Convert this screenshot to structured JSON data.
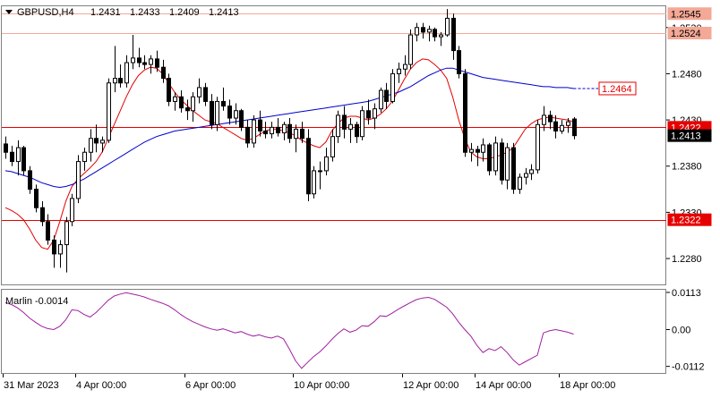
{
  "chart_data": [
    {
      "type": "candlestick",
      "title": "GBPUSD,H4",
      "header_ohlc": [
        "1.2431",
        "1.2433",
        "1.2409",
        "1.2413"
      ],
      "ylim": [
        1.2252,
        1.2553
      ],
      "yticks": [
        "1.2280",
        "1.2330",
        "1.2380",
        "1.2430",
        "1.2480",
        "1.2530"
      ],
      "xticks": [
        "31 Mar 2023",
        "4 Apr 00:00",
        "6 Apr 00:00",
        "10 Apr 00:00",
        "12 Apr 00:00",
        "14 Apr 00:00",
        "18 Apr 00:00"
      ],
      "hlines": [
        {
          "label": "1.2545",
          "value": 1.2545,
          "color": "#f4a896",
          "style": "solid"
        },
        {
          "label": "1.2524",
          "value": 1.2524,
          "color": "#f4a896",
          "style": "solid"
        },
        {
          "label": "1.2422",
          "value": 1.2422,
          "color": "#e60000",
          "style": "solid"
        },
        {
          "label": "1.2322",
          "value": 1.2322,
          "color": "#e60000",
          "style": "solid"
        }
      ],
      "target_label": {
        "label": "1.2464",
        "value": 1.2464,
        "color": "#e60000"
      },
      "current_price": {
        "label": "1.2413",
        "value": 1.2413
      },
      "candles": [
        [
          1.2404,
          1.2412,
          1.2388,
          1.2395
        ],
        [
          1.2395,
          1.2402,
          1.238,
          1.2385
        ],
        [
          1.2385,
          1.2408,
          1.237,
          1.24
        ],
        [
          1.24,
          1.2402,
          1.237,
          1.2375
        ],
        [
          1.2375,
          1.238,
          1.235,
          1.2355
        ],
        [
          1.2355,
          1.236,
          1.233,
          1.2335
        ],
        [
          1.2335,
          1.2342,
          1.2315,
          1.232
        ],
        [
          1.232,
          1.2328,
          1.2295,
          1.23
        ],
        [
          1.23,
          1.2305,
          1.227,
          1.2285
        ],
        [
          1.2285,
          1.23,
          1.227,
          1.2295
        ],
        [
          1.2295,
          1.2325,
          1.2265,
          1.232
        ],
        [
          1.232,
          1.235,
          1.2315,
          1.2345
        ],
        [
          1.2345,
          1.2392,
          1.234,
          1.2385
        ],
        [
          1.2385,
          1.24,
          1.2375,
          1.2395
        ],
        [
          1.2395,
          1.242,
          1.2385,
          1.241
        ],
        [
          1.241,
          1.2425,
          1.2395,
          1.2405
        ],
        [
          1.2405,
          1.2412,
          1.2395,
          1.2408
        ],
        [
          1.2408,
          1.2475,
          1.2405,
          1.247
        ],
        [
          1.247,
          1.251,
          1.246,
          1.2475
        ],
        [
          1.2475,
          1.249,
          1.2465,
          1.247
        ],
        [
          1.247,
          1.25,
          1.2465,
          1.2492
        ],
        [
          1.2492,
          1.2522,
          1.2485,
          1.2497
        ],
        [
          1.2497,
          1.2508,
          1.2487,
          1.2492
        ],
        [
          1.2492,
          1.25,
          1.2485,
          1.249
        ],
        [
          1.249,
          1.25,
          1.248,
          1.2496
        ],
        [
          1.2496,
          1.2505,
          1.2482,
          1.2487
        ],
        [
          1.2487,
          1.2495,
          1.247,
          1.2475
        ],
        [
          1.2475,
          1.248,
          1.2445,
          1.245
        ],
        [
          1.245,
          1.246,
          1.244,
          1.2455
        ],
        [
          1.2455,
          1.2462,
          1.2438,
          1.2443
        ],
        [
          1.2443,
          1.2452,
          1.243,
          1.244
        ],
        [
          1.244,
          1.246,
          1.2428,
          1.2455
        ],
        [
          1.2455,
          1.2475,
          1.2448,
          1.2465
        ],
        [
          1.2465,
          1.247,
          1.2445,
          1.245
        ],
        [
          1.245,
          1.2458,
          1.242,
          1.2425
        ],
        [
          1.2425,
          1.2455,
          1.2418,
          1.245
        ],
        [
          1.245,
          1.2465,
          1.244,
          1.2445
        ],
        [
          1.2445,
          1.2452,
          1.2425,
          1.2432
        ],
        [
          1.2432,
          1.2448,
          1.2425,
          1.244
        ],
        [
          1.244,
          1.2442,
          1.2418,
          1.2422
        ],
        [
          1.2422,
          1.243,
          1.24,
          1.2405
        ],
        [
          1.2405,
          1.2435,
          1.24,
          1.243
        ],
        [
          1.243,
          1.244,
          1.2412,
          1.2418
        ],
        [
          1.2418,
          1.2428,
          1.241,
          1.2415
        ],
        [
          1.2415,
          1.2428,
          1.241,
          1.2422
        ],
        [
          1.2422,
          1.2432,
          1.2412,
          1.2416
        ],
        [
          1.2416,
          1.2428,
          1.2408,
          1.2425
        ],
        [
          1.2425,
          1.2432,
          1.2405,
          1.241
        ],
        [
          1.241,
          1.2425,
          1.2395,
          1.242
        ],
        [
          1.242,
          1.2428,
          1.2405,
          1.241
        ],
        [
          1.241,
          1.242,
          1.2342,
          1.235
        ],
        [
          1.235,
          1.238,
          1.2345,
          1.2375
        ],
        [
          1.2375,
          1.2385,
          1.2355,
          1.2375
        ],
        [
          1.2375,
          1.24,
          1.237,
          1.239
        ],
        [
          1.239,
          1.242,
          1.2385,
          1.2412
        ],
        [
          1.2412,
          1.244,
          1.2405,
          1.2435
        ],
        [
          1.2435,
          1.2445,
          1.241,
          1.242
        ],
        [
          1.242,
          1.2432,
          1.2405,
          1.2425
        ],
        [
          1.2425,
          1.2428,
          1.2405,
          1.2412
        ],
        [
          1.2412,
          1.2445,
          1.2408,
          1.244
        ],
        [
          1.244,
          1.2452,
          1.2425,
          1.2432
        ],
        [
          1.2432,
          1.2448,
          1.242,
          1.2442
        ],
        [
          1.2442,
          1.2465,
          1.2438,
          1.2462
        ],
        [
          1.2462,
          1.247,
          1.2442,
          1.245
        ],
        [
          1.245,
          1.2485,
          1.2448,
          1.248
        ],
        [
          1.248,
          1.2492,
          1.247,
          1.2485
        ],
        [
          1.2485,
          1.25,
          1.2478,
          1.249
        ],
        [
          1.249,
          1.2528,
          1.2485,
          1.2522
        ],
        [
          1.2522,
          1.2535,
          1.2515,
          1.253
        ],
        [
          1.253,
          1.2535,
          1.2518,
          1.2525
        ],
        [
          1.2525,
          1.2532,
          1.2515,
          1.2528
        ],
        [
          1.2528,
          1.253,
          1.2515,
          1.252
        ],
        [
          1.252,
          1.2525,
          1.251,
          1.2522
        ],
        [
          1.2522,
          1.255,
          1.252,
          1.254
        ],
        [
          1.254,
          1.2545,
          1.2495,
          1.2505
        ],
        [
          1.2505,
          1.251,
          1.2475,
          1.248
        ],
        [
          1.248,
          1.2485,
          1.239,
          1.2395
        ],
        [
          1.2395,
          1.2405,
          1.2385,
          1.2398
        ],
        [
          1.2398,
          1.2402,
          1.238,
          1.2395
        ],
        [
          1.2395,
          1.241,
          1.2385,
          1.2403
        ],
        [
          1.2403,
          1.2405,
          1.237,
          1.2375
        ],
        [
          1.2375,
          1.2412,
          1.237,
          1.2405
        ],
        [
          1.2405,
          1.241,
          1.236,
          1.2365
        ],
        [
          1.2365,
          1.2405,
          1.2355,
          1.24
        ],
        [
          1.24,
          1.2405,
          1.235,
          1.2355
        ],
        [
          1.2355,
          1.2372,
          1.235,
          1.2368
        ],
        [
          1.2368,
          1.2378,
          1.236,
          1.2372
        ],
        [
          1.2372,
          1.2382,
          1.2365,
          1.2376
        ],
        [
          1.2376,
          1.243,
          1.2372,
          1.2425
        ],
        [
          1.2425,
          1.2445,
          1.2418,
          1.2435
        ],
        [
          1.2435,
          1.244,
          1.242,
          1.2428
        ],
        [
          1.2428,
          1.2435,
          1.241,
          1.2418
        ],
        [
          1.2418,
          1.243,
          1.2415,
          1.2424
        ],
        [
          1.2424,
          1.2432,
          1.2416,
          1.2428
        ],
        [
          1.2431,
          1.2433,
          1.2409,
          1.2413
        ]
      ],
      "series": [
        {
          "name": "",
          "color": "#e60000",
          "values": [
            1.2335,
            1.2332,
            1.2328,
            1.2322,
            1.2312,
            1.23,
            1.2292,
            1.229,
            1.23,
            1.232,
            1.2342,
            1.2358,
            1.2366,
            1.2372,
            1.2378,
            1.2385,
            1.2395,
            1.241,
            1.2425,
            1.244,
            1.2455,
            1.2468,
            1.2478,
            1.2484,
            1.2487,
            1.2486,
            1.248,
            1.247,
            1.246,
            1.2452,
            1.2446,
            1.244,
            1.2435,
            1.243,
            1.2428,
            1.2426,
            1.2422,
            1.2418,
            1.2414,
            1.241,
            1.2408,
            1.241,
            1.2414,
            1.2418,
            1.242,
            1.242,
            1.2418,
            1.2416,
            1.2413,
            1.2408,
            1.2405,
            1.2402,
            1.24,
            1.2406,
            1.2418,
            1.2426,
            1.2432,
            1.2434,
            1.2434,
            1.2432,
            1.243,
            1.2432,
            1.2436,
            1.2442,
            1.245,
            1.2462,
            1.2474,
            1.2485,
            1.2492,
            1.2496,
            1.2495,
            1.249,
            1.2484,
            1.2475,
            1.2455,
            1.243,
            1.241,
            1.2395,
            1.239,
            1.2388,
            1.2388,
            1.239,
            1.2392,
            1.2395,
            1.24,
            1.241,
            1.242,
            1.2426,
            1.243,
            1.2432,
            1.2433,
            1.2432,
            1.2431,
            1.243,
            1.2428
          ]
        },
        {
          "name": "",
          "color": "#0000cc",
          "values": [
            1.2375,
            1.2374,
            1.2372,
            1.237,
            1.2368,
            1.2365,
            1.2362,
            1.236,
            1.2358,
            1.2357,
            1.2358,
            1.236,
            1.2363,
            1.2366,
            1.237,
            1.2374,
            1.2378,
            1.2382,
            1.2386,
            1.239,
            1.2394,
            1.2398,
            1.2402,
            1.2406,
            1.2409,
            1.2412,
            1.2414,
            1.2416,
            1.2418,
            1.2419,
            1.242,
            1.2421,
            1.2422,
            1.2423,
            1.2424,
            1.2425,
            1.2426,
            1.2427,
            1.2428,
            1.2429,
            1.243,
            1.2431,
            1.2432,
            1.2433,
            1.2434,
            1.2435,
            1.2436,
            1.2437,
            1.2438,
            1.2439,
            1.244,
            1.2441,
            1.2442,
            1.2443,
            1.2444,
            1.2445,
            1.2446,
            1.2447,
            1.2448,
            1.2449,
            1.245,
            1.2452,
            1.2454,
            1.2456,
            1.2458,
            1.246,
            1.2463,
            1.2466,
            1.247,
            1.2474,
            1.2478,
            1.2481,
            1.2484,
            1.2486,
            1.2486,
            1.2484,
            1.2482,
            1.248,
            1.2478,
            1.2476,
            1.2475,
            1.2474,
            1.2473,
            1.2472,
            1.2471,
            1.247,
            1.2469,
            1.2468,
            1.2467,
            1.2466,
            1.2466,
            1.2465,
            1.2465,
            1.2465,
            1.2464
          ]
        }
      ]
    },
    {
      "type": "line",
      "title": "Marlin -0.0014",
      "ylim": [
        -0.0132,
        0.0121
      ],
      "yticks": [
        "0.0113",
        "0.00",
        "-0.0112"
      ],
      "series": [
        {
          "name": "",
          "color": "#a020a0",
          "values": [
            0.0082,
            0.0076,
            0.0066,
            0.0052,
            0.0035,
            0.0022,
            0.001,
            0.0003,
            0.0,
            0.001,
            0.003,
            0.006,
            0.0058,
            0.0046,
            0.0038,
            0.0052,
            0.007,
            0.0089,
            0.0102,
            0.0108,
            0.0112,
            0.0108,
            0.0104,
            0.0099,
            0.0092,
            0.0086,
            0.008,
            0.0072,
            0.006,
            0.0046,
            0.0034,
            0.0024,
            0.0016,
            0.0008,
            0.0002,
            -0.0002,
            0.0002,
            -0.0004,
            -0.001,
            -0.0006,
            -0.0014,
            -0.002,
            -0.0016,
            -0.0022,
            -0.0026,
            -0.002,
            -0.0028,
            -0.006,
            -0.0095,
            -0.0118,
            -0.01,
            -0.0082,
            -0.0068,
            -0.005,
            -0.003,
            -0.0012,
            0.0002,
            -0.0008,
            -0.0002,
            0.0012,
            0.001,
            0.0024,
            0.0042,
            0.004,
            0.005,
            0.0062,
            0.0072,
            0.0082,
            0.0091,
            0.0096,
            0.0098,
            0.0092,
            0.008,
            0.0068,
            0.0048,
            0.0022,
            0.0,
            -0.002,
            -0.0048,
            -0.007,
            -0.0058,
            -0.0064,
            -0.0052,
            -0.007,
            -0.0092,
            -0.0108,
            -0.0098,
            -0.0088,
            -0.0078,
            -0.001,
            -0.0004,
            0.0,
            -0.0004,
            -0.0008,
            -0.0014
          ]
        }
      ]
    }
  ]
}
